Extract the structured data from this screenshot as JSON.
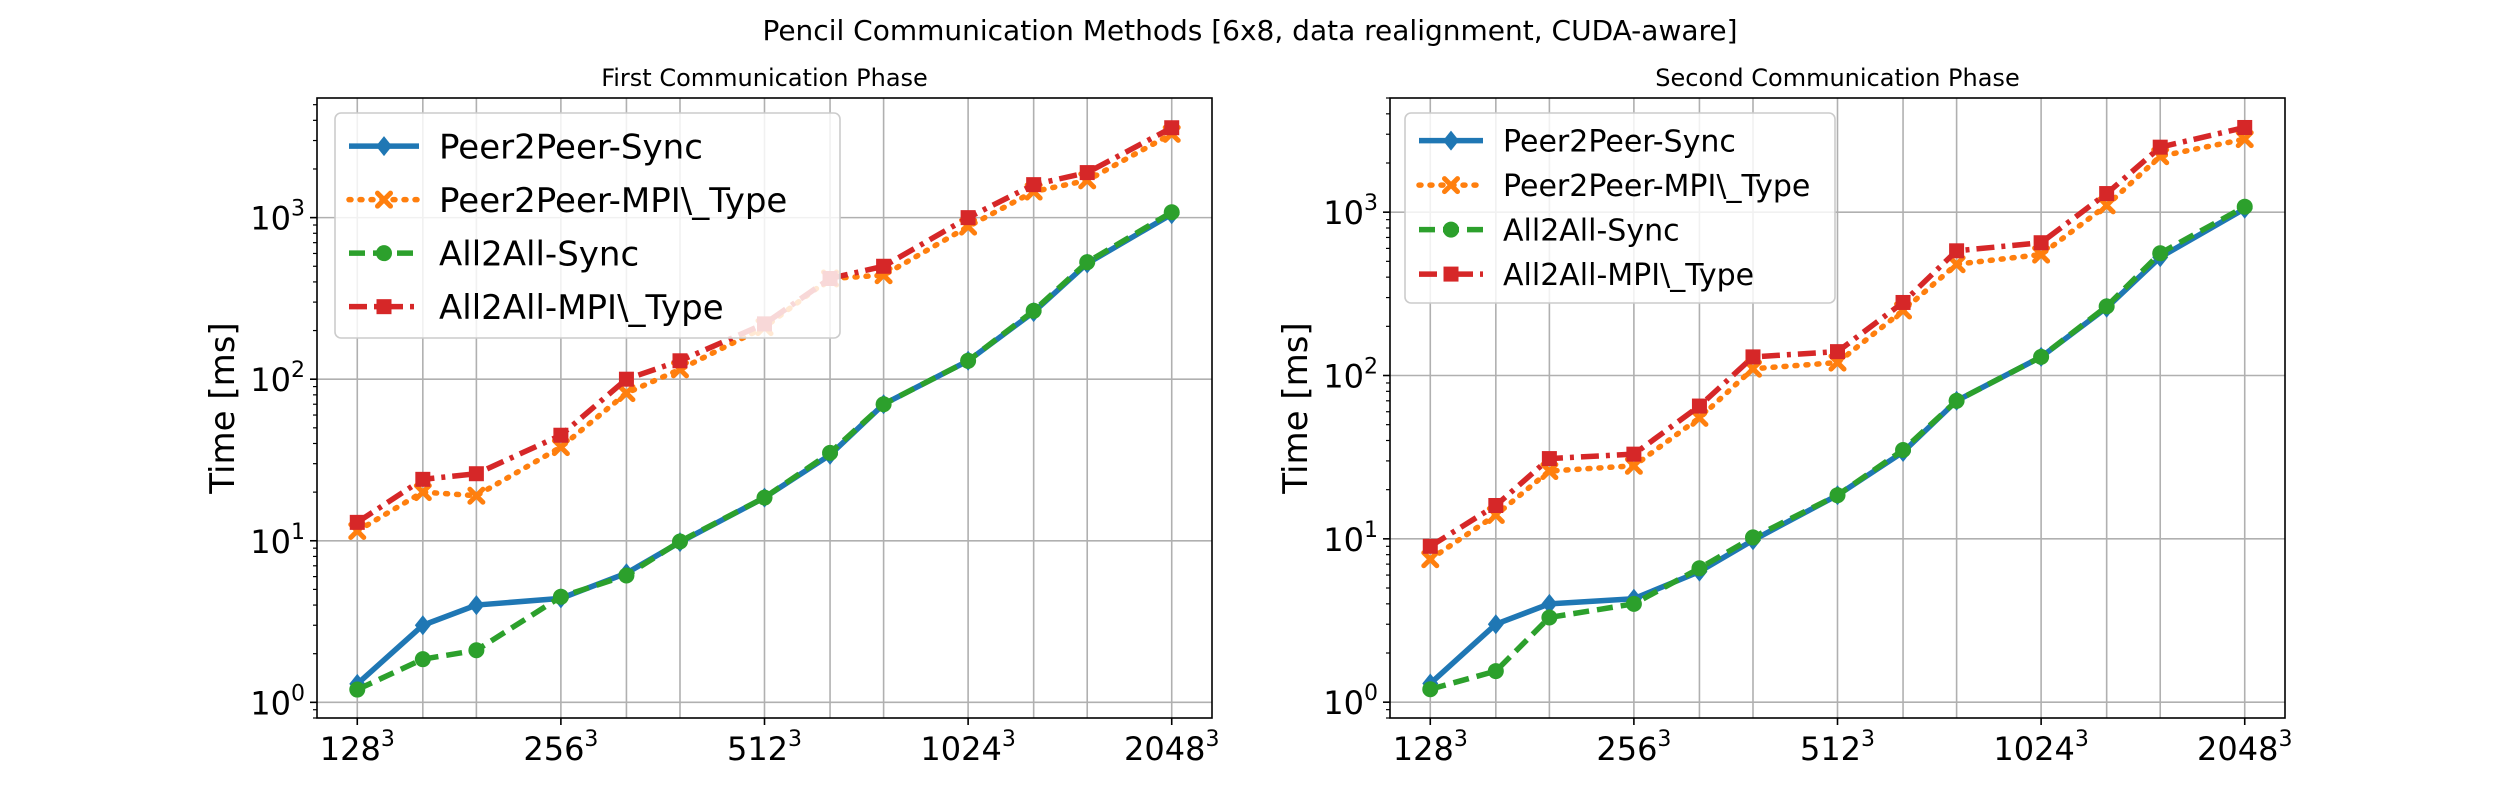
{
  "figure": {
    "suptitle": "Pencil Communication Methods [6x8, data realignment, CUDA-aware]"
  },
  "colors": {
    "Peer2Peer-Sync": "#1f77b4",
    "Peer2Peer-MPI\\_Type": "#ff7f0e",
    "All2All-Sync": "#2ca02c",
    "All2All-MPI\\_Type": "#d62728"
  },
  "chart_data": [
    {
      "type": "line",
      "title": "First Communication Phase",
      "xlabel": "",
      "ylabel": "Time [ms]",
      "yscale": "log",
      "ylim": [
        0.8,
        5500
      ],
      "x": [
        128,
        160,
        192,
        256,
        320,
        384,
        512,
        640,
        768,
        1024,
        1280,
        1536,
        2048
      ],
      "xtick_values": [
        128,
        256,
        512,
        1024,
        2048
      ],
      "xtick_labels": [
        {
          "base": "128",
          "exp": "3"
        },
        {
          "base": "256",
          "exp": "3"
        },
        {
          "base": "512",
          "exp": "3"
        },
        {
          "base": "1024",
          "exp": "3"
        },
        {
          "base": "2048",
          "exp": "3"
        }
      ],
      "ytick_labels": [
        {
          "value": 1,
          "base": "10",
          "exp": "0"
        },
        {
          "value": 10,
          "base": "10",
          "exp": "1"
        },
        {
          "value": 100,
          "base": "10",
          "exp": "2"
        },
        {
          "value": 1000,
          "base": "10",
          "exp": "3"
        }
      ],
      "grid": true,
      "legend": "upper-left",
      "series": [
        {
          "name": "Peer2Peer-Sync",
          "marker": "diamond",
          "dash": "solid",
          "values": [
            1.3,
            3.0,
            4.0,
            4.4,
            6.3,
            9.8,
            18.5,
            34,
            70,
            130,
            260,
            520,
            1050
          ]
        },
        {
          "name": "Peer2Peer-MPI\\_Type",
          "marker": "x",
          "dash": "dotted",
          "values": [
            11.5,
            20,
            19,
            38,
            82,
            115,
            210,
            420,
            440,
            880,
            1450,
            1700,
            3300
          ]
        },
        {
          "name": "All2All-Sync",
          "marker": "circle",
          "dash": "dashed",
          "values": [
            1.2,
            1.85,
            2.1,
            4.5,
            6.1,
            9.9,
            18.5,
            35,
            70,
            130,
            265,
            530,
            1080
          ]
        },
        {
          "name": "All2All-MPI\\_Type",
          "marker": "square",
          "dash": "dashdot",
          "values": [
            13,
            24,
            26,
            45,
            100,
            130,
            220,
            420,
            500,
            1000,
            1600,
            1900,
            3600
          ]
        }
      ]
    },
    {
      "type": "line",
      "title": "Second Communication Phase",
      "xlabel": "",
      "ylabel": "Time [ms]",
      "yscale": "log",
      "ylim": [
        0.8,
        5000
      ],
      "x": [
        128,
        160,
        192,
        256,
        320,
        384,
        512,
        640,
        768,
        1024,
        1280,
        1536,
        2048
      ],
      "xtick_values": [
        128,
        256,
        512,
        1024,
        2048
      ],
      "xtick_labels": [
        {
          "base": "128",
          "exp": "3"
        },
        {
          "base": "256",
          "exp": "3"
        },
        {
          "base": "512",
          "exp": "3"
        },
        {
          "base": "1024",
          "exp": "3"
        },
        {
          "base": "2048",
          "exp": "3"
        }
      ],
      "ytick_labels": [
        {
          "value": 1,
          "base": "10",
          "exp": "0"
        },
        {
          "value": 10,
          "base": "10",
          "exp": "1"
        },
        {
          "value": 100,
          "base": "10",
          "exp": "2"
        },
        {
          "value": 1000,
          "base": "10",
          "exp": "3"
        }
      ],
      "grid": true,
      "legend": "upper-left",
      "series": [
        {
          "name": "Peer2Peer-Sync",
          "marker": "diamond",
          "dash": "solid",
          "values": [
            1.3,
            3.0,
            4.0,
            4.3,
            6.3,
            9.8,
            18.5,
            34,
            70,
            130,
            260,
            530,
            1050
          ]
        },
        {
          "name": "Peer2Peer-MPI\\_Type",
          "marker": "x",
          "dash": "dotted",
          "values": [
            7.5,
            14,
            26,
            28,
            55,
            110,
            120,
            250,
            480,
            550,
            1100,
            2200,
            2800
          ]
        },
        {
          "name": "All2All-Sync",
          "marker": "circle",
          "dash": "dashed",
          "values": [
            1.2,
            1.55,
            3.3,
            4.0,
            6.6,
            10.2,
            18.5,
            35,
            70,
            130,
            265,
            560,
            1080
          ]
        },
        {
          "name": "All2All-MPI\\_Type",
          "marker": "square",
          "dash": "dashdot",
          "values": [
            9,
            16,
            31,
            33,
            65,
            130,
            140,
            280,
            580,
            650,
            1300,
            2500,
            3300
          ]
        }
      ]
    }
  ]
}
